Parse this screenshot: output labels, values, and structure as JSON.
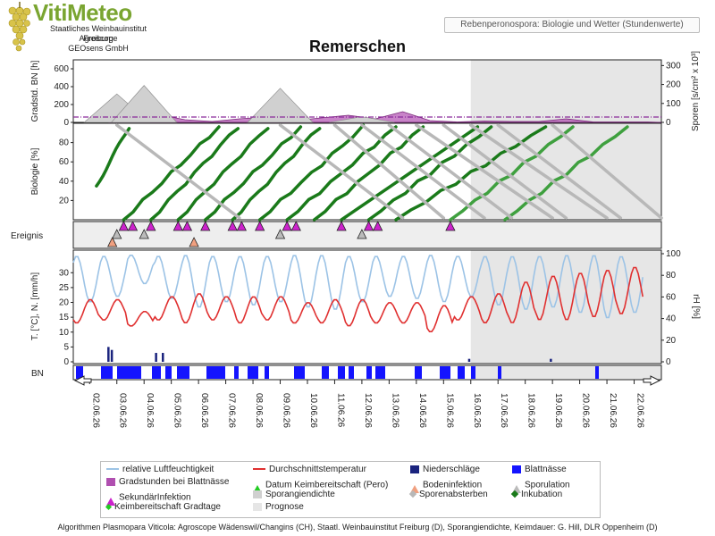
{
  "header": {
    "brand": "VitiMeteo",
    "institutions": [
      "Staatliches Weinbauinstitut Freiburg",
      "Agroscope",
      "GEOsens GmbH"
    ],
    "subtitle": "Rebenperonospora: Biologie und Wetter (Stundenwerte)",
    "title": "Remerschen"
  },
  "panels": {
    "degree_hours": {
      "ylabel": "Gradstd. BN [h]",
      "y2label": "Sporen [s/cm² x 10³]",
      "yticks": [
        "0",
        "200",
        "400",
        "600"
      ],
      "y2ticks": [
        "0",
        "100",
        "200",
        "300"
      ]
    },
    "biology": {
      "ylabel": "Biologie [%]",
      "yticks": [
        "20",
        "40",
        "60",
        "80"
      ]
    },
    "events": {
      "label": "Ereignis"
    },
    "weather": {
      "ylabel": "T. [°C], N. [mm/h]",
      "y2label": "rH [%]",
      "yticks": [
        "0",
        "5",
        "10",
        "15",
        "20",
        "25",
        "30"
      ],
      "y2ticks": [
        "0",
        "20",
        "40",
        "60",
        "80",
        "100"
      ]
    },
    "leaf_wetness": {
      "label": "BN"
    }
  },
  "chart_data": {
    "type": "line",
    "x": [
      "02.06.26",
      "03.06.26",
      "04.06.26",
      "05.06.26",
      "06.06.26",
      "07.06.26",
      "08.06.26",
      "09.06.26",
      "10.06.26",
      "11.06.26",
      "12.06.26",
      "13.06.26",
      "14.06.26",
      "15.06.26",
      "16.06.26",
      "17.06.26",
      "18.06.26",
      "19.06.26",
      "20.06.26",
      "21.06.26",
      "22.06.26"
    ],
    "forecast_from": "15.06.26 12:00",
    "series": [
      {
        "name": "relative Luftfeuchtigkeit",
        "color": "#9cc3e6",
        "unit": "%",
        "daily_min": [
          55,
          60,
          72,
          58,
          50,
          55,
          52,
          55,
          50,
          48,
          55,
          60,
          58,
          55,
          60,
          52,
          48,
          50,
          45,
          40,
          45
        ],
        "daily_max": [
          98,
          98,
          99,
          98,
          99,
          98,
          98,
          98,
          99,
          99,
          98,
          98,
          98,
          99,
          98,
          98,
          98,
          98,
          99,
          99,
          98
        ]
      },
      {
        "name": "Durchschnittstemperatur",
        "color": "#e03030",
        "unit": "°C",
        "daily_min": [
          13,
          14,
          12,
          14,
          13,
          14,
          13,
          14,
          13,
          13,
          12,
          13,
          13,
          10,
          14,
          13,
          13,
          14,
          14,
          15,
          16
        ],
        "daily_max": [
          21,
          21,
          17,
          22,
          23,
          22,
          22,
          22,
          20,
          21,
          21,
          20,
          20,
          19,
          22,
          23,
          27,
          29,
          30,
          31,
          32
        ]
      },
      {
        "name": "Niederschläge",
        "color": "#1a237e",
        "unit": "mm/h",
        "events": [
          [
            "03.06.26 06:00",
            5
          ],
          [
            "03.06.26 09:00",
            4
          ],
          [
            "05.06.26 00:00",
            3
          ],
          [
            "05.06.26 06:00",
            3
          ],
          [
            "16.06.26 12:00",
            1
          ],
          [
            "19.06.26 12:00",
            1
          ]
        ]
      },
      {
        "name": "Gradstunden bei Blattnässe",
        "color": "#b04fb0",
        "unit": "h",
        "values": [
          20,
          30,
          90,
          30,
          10,
          40,
          60,
          20,
          50,
          80,
          40,
          120,
          20,
          5,
          15,
          10,
          10,
          40,
          5,
          5,
          5
        ]
      },
      {
        "name": "Sporangiendichte",
        "color": "#c8c8c8",
        "unit": "s/cm² x 10³",
        "peaks": [
          [
            "03.06.26",
            150
          ],
          [
            "04.06.26",
            195
          ],
          [
            "09.06.26",
            180
          ],
          [
            "12.06.26",
            30
          ]
        ]
      }
    ],
    "legend": [
      "relative Luftfeuchtigkeit",
      "Durchschnittstemperatur",
      "Niederschläge",
      "Blattnässe",
      "Gradstunden bei Blattnässe",
      "Datum Keimbereitschaft (Pero)",
      "Bodeninfektion",
      "Sporulation",
      "SekundärInfektion",
      "Sporangiendichte",
      "Sporenabsterben",
      "Inkubation",
      "Keimbereitschaft Gradtage",
      "Prognose"
    ],
    "events": {
      "SekundärInfektion": [
        "03.06.26",
        "04.06.26",
        "05.06.26",
        "06.06.26",
        "07.06.26",
        "08.06.26",
        "09.06.26",
        "11.06.26",
        "12.06.26",
        "15.06.26"
      ],
      "Sporulation": [
        "03.06.26",
        "04.06.26",
        "09.06.26",
        "12.06.26"
      ],
      "Bodeninfektion": [
        "02.06.26",
        "05.06.26"
      ]
    }
  },
  "legend_labels": {
    "rh": "relative Luftfeuchtigkeit",
    "temp": "Durchschnittstemperatur",
    "rain": "Niederschläge",
    "wet": "Blattnässe",
    "deg": "Gradstunden bei Blattnässe",
    "germ": "Datum Keimbereitschaft (Pero)",
    "soil": "Bodeninfektion",
    "spor": "Sporulation",
    "sec": "SekundärInfektion",
    "dens": "Sporangiendichte",
    "death": "Sporenabsterben",
    "inc": "Inkubation",
    "gradtage": "Keimbereitschaft Gradtage",
    "prog": "Prognose"
  },
  "colors": {
    "incubation": "#1a7a1a",
    "forecast_green": "#3fa03f",
    "spore_death": "#b8b8b8",
    "forecast_bg": "#e6e6e6",
    "leaf_wetness": "#1414ff"
  },
  "footer": "Algorithmen Plasmopara Viticola: Agroscope Wädenswil/Changins (CH), Staatl. Weinbauinstitut Freiburg (D), Sporangiendichte, Keimdauer: G. Hill, DLR Oppenheim (D)"
}
